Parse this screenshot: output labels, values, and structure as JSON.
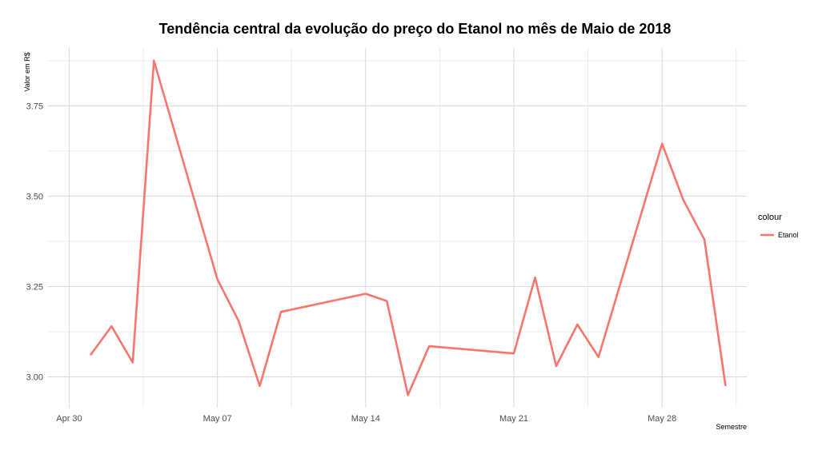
{
  "chart_data": {
    "type": "line",
    "title": "Tendência central da evolução do preço do Etanol no mês de Maio de 2018",
    "xlabel": "Semestre",
    "ylabel": "Valor em R$",
    "x_ticks": [
      "Apr 30",
      "May 07",
      "May 14",
      "May 21",
      "May 28"
    ],
    "y_ticks": [
      "3.00",
      "3.25",
      "3.50",
      "3.75"
    ],
    "xlim": [
      "2018-04-29",
      "2018-06-01"
    ],
    "ylim": [
      2.915,
      3.91
    ],
    "grid": true,
    "legend": {
      "title": "colour",
      "position": "right"
    },
    "series": [
      {
        "name": "Etanol",
        "color": "#F8766D",
        "x": [
          "2018-05-01",
          "2018-05-02",
          "2018-05-03",
          "2018-05-04",
          "2018-05-07",
          "2018-05-08",
          "2018-05-09",
          "2018-05-10",
          "2018-05-14",
          "2018-05-15",
          "2018-05-16",
          "2018-05-17",
          "2018-05-21",
          "2018-05-22",
          "2018-05-23",
          "2018-05-24",
          "2018-05-25",
          "2018-05-28",
          "2018-05-29",
          "2018-05-30",
          "2018-05-31"
        ],
        "values": [
          3.06,
          3.14,
          3.04,
          3.875,
          3.27,
          3.155,
          2.975,
          3.18,
          3.23,
          3.21,
          2.95,
          3.085,
          3.065,
          3.275,
          3.03,
          3.145,
          3.055,
          3.645,
          3.49,
          3.38,
          2.975
        ]
      }
    ]
  }
}
